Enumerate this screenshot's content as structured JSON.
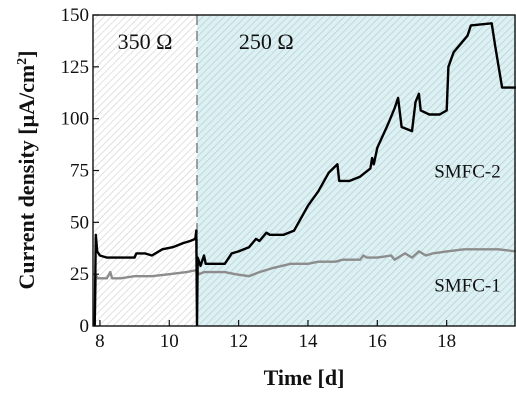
{
  "chart_data": {
    "type": "line",
    "xlabel": "Time [d]",
    "ylabel": "Current density [μA/cm²]",
    "ylabel_main": "Current density [μA/cm",
    "ylabel_sup": "2",
    "ylabel_end": "]",
    "xlim": [
      7.8,
      20.0
    ],
    "ylim": [
      0,
      150
    ],
    "x_ticks": [
      8,
      10,
      12,
      14,
      16,
      18
    ],
    "y_ticks": [
      0,
      25,
      50,
      75,
      100,
      125,
      150
    ],
    "grid": false,
    "divider_x": 10.8,
    "regions": [
      {
        "label": "350 Ω",
        "x_start": 7.8,
        "x_end": 10.8,
        "hatch_color": "#cfcfcf"
      },
      {
        "label": "250 Ω",
        "x_start": 10.8,
        "x_end": 20.0,
        "hatch_color": "#a9d6db"
      }
    ],
    "series": [
      {
        "name": "SMFC-2",
        "color": "#000000",
        "points": [
          [
            7.85,
            0
          ],
          [
            7.88,
            44
          ],
          [
            7.92,
            36
          ],
          [
            8.0,
            34
          ],
          [
            8.2,
            33
          ],
          [
            8.5,
            33
          ],
          [
            9.0,
            33
          ],
          [
            9.05,
            35
          ],
          [
            9.3,
            35
          ],
          [
            9.5,
            34
          ],
          [
            9.8,
            37
          ],
          [
            10.1,
            38
          ],
          [
            10.4,
            40
          ],
          [
            10.6,
            41
          ],
          [
            10.75,
            42
          ],
          [
            10.78,
            46
          ],
          [
            10.8,
            0
          ],
          [
            10.82,
            33
          ],
          [
            10.9,
            29
          ],
          [
            11.0,
            34
          ],
          [
            11.05,
            30
          ],
          [
            11.2,
            30
          ],
          [
            11.6,
            30
          ],
          [
            11.8,
            35
          ],
          [
            12.0,
            36
          ],
          [
            12.3,
            38
          ],
          [
            12.5,
            42
          ],
          [
            12.6,
            41
          ],
          [
            12.8,
            45
          ],
          [
            12.9,
            44
          ],
          [
            13.3,
            44
          ],
          [
            13.6,
            46
          ],
          [
            13.8,
            52
          ],
          [
            14.0,
            58
          ],
          [
            14.3,
            65
          ],
          [
            14.6,
            74
          ],
          [
            14.85,
            78
          ],
          [
            14.9,
            70
          ],
          [
            15.2,
            70
          ],
          [
            15.5,
            72
          ],
          [
            15.8,
            76
          ],
          [
            15.85,
            81
          ],
          [
            15.9,
            78
          ],
          [
            16.0,
            86
          ],
          [
            16.3,
            97
          ],
          [
            16.5,
            105
          ],
          [
            16.6,
            110
          ],
          [
            16.7,
            96
          ],
          [
            17.0,
            94
          ],
          [
            17.1,
            108
          ],
          [
            17.2,
            112
          ],
          [
            17.25,
            104
          ],
          [
            17.5,
            102
          ],
          [
            17.8,
            102
          ],
          [
            18.0,
            104
          ],
          [
            18.05,
            125
          ],
          [
            18.2,
            132
          ],
          [
            18.6,
            140
          ],
          [
            18.7,
            145
          ],
          [
            19.3,
            146
          ],
          [
            19.4,
            135
          ],
          [
            19.6,
            115
          ],
          [
            20.0,
            115
          ]
        ]
      },
      {
        "name": "SMFC-1",
        "color": "#8c8c8c",
        "points": [
          [
            7.85,
            0
          ],
          [
            7.88,
            25
          ],
          [
            7.92,
            23
          ],
          [
            8.2,
            23
          ],
          [
            8.3,
            26
          ],
          [
            8.35,
            23
          ],
          [
            8.6,
            23
          ],
          [
            9.0,
            24
          ],
          [
            9.5,
            24
          ],
          [
            10.0,
            25
          ],
          [
            10.5,
            26
          ],
          [
            10.8,
            27
          ],
          [
            10.85,
            25
          ],
          [
            11.0,
            26
          ],
          [
            11.3,
            26
          ],
          [
            11.6,
            26
          ],
          [
            11.9,
            25
          ],
          [
            12.3,
            24
          ],
          [
            12.6,
            26
          ],
          [
            13.0,
            28
          ],
          [
            13.5,
            30
          ],
          [
            14.0,
            30
          ],
          [
            14.3,
            31
          ],
          [
            14.8,
            31
          ],
          [
            15.0,
            32
          ],
          [
            15.5,
            32
          ],
          [
            15.6,
            34
          ],
          [
            15.7,
            33
          ],
          [
            16.0,
            33
          ],
          [
            16.4,
            34
          ],
          [
            16.5,
            32
          ],
          [
            16.8,
            35
          ],
          [
            17.0,
            33
          ],
          [
            17.2,
            36
          ],
          [
            17.4,
            34
          ],
          [
            17.6,
            35
          ],
          [
            18.0,
            36
          ],
          [
            18.5,
            37
          ],
          [
            19.0,
            37
          ],
          [
            19.5,
            37
          ],
          [
            20.0,
            36
          ]
        ]
      }
    ]
  }
}
